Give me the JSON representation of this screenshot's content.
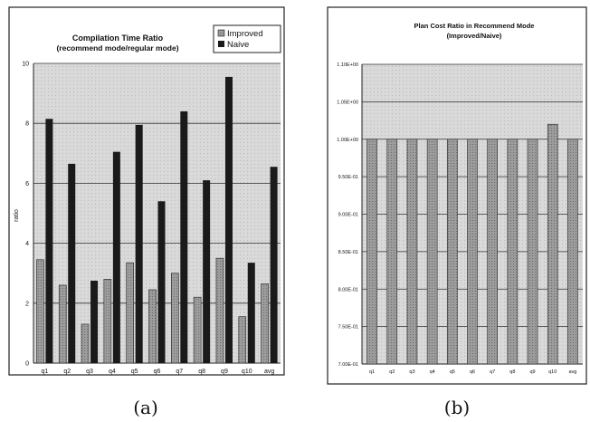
{
  "colors": {
    "improved": "#a8a8a8",
    "naive": "#1a1a1a",
    "plot_bg": "#d7d7d7",
    "frame": "#222222"
  },
  "chart_data": [
    {
      "type": "bar",
      "caption": "(a)",
      "title": "Compilation Time Ratio",
      "subtitle": "(recommend mode/regular mode)",
      "ylabel": "ratio",
      "xlabel": "",
      "ylim": [
        0,
        10
      ],
      "yticks": [
        "0",
        "2",
        "4",
        "6",
        "8",
        "10"
      ],
      "grid": true,
      "legend": "top-right",
      "categories": [
        "q1",
        "q2",
        "q3",
        "q4",
        "q5",
        "q6",
        "q7",
        "q8",
        "q9",
        "q10",
        "avg"
      ],
      "series": [
        {
          "name": "Improved",
          "values": [
            3.45,
            2.6,
            1.3,
            2.8,
            3.35,
            2.45,
            3.0,
            2.2,
            3.5,
            1.55,
            2.65
          ]
        },
        {
          "name": "Naive",
          "values": [
            8.15,
            6.65,
            2.75,
            7.05,
            7.95,
            5.4,
            8.4,
            6.1,
            9.55,
            3.35,
            6.55
          ]
        }
      ]
    },
    {
      "type": "bar",
      "caption": "(b)",
      "title": "Plan Cost Ratio in Recommend Mode",
      "subtitle": "(Improved/Naive)",
      "ylabel": "",
      "xlabel": "",
      "ylim": [
        0.7,
        1.1
      ],
      "yticks": [
        "7.00E-01",
        "7.50E-01",
        "8.00E-01",
        "8.50E-01",
        "9.00E-01",
        "9.50E-01",
        "1.00E+00",
        "1.05E+00",
        "1.10E+00"
      ],
      "grid": true,
      "legend": "none",
      "categories": [
        "q1",
        "q2",
        "q3",
        "q4",
        "q5",
        "q6",
        "q7",
        "q8",
        "q9",
        "q10",
        "avg"
      ],
      "values": [
        1.0,
        1.0,
        1.0,
        1.0,
        1.0,
        1.0,
        1.0,
        1.0,
        1.0,
        1.02,
        1.0
      ]
    }
  ]
}
